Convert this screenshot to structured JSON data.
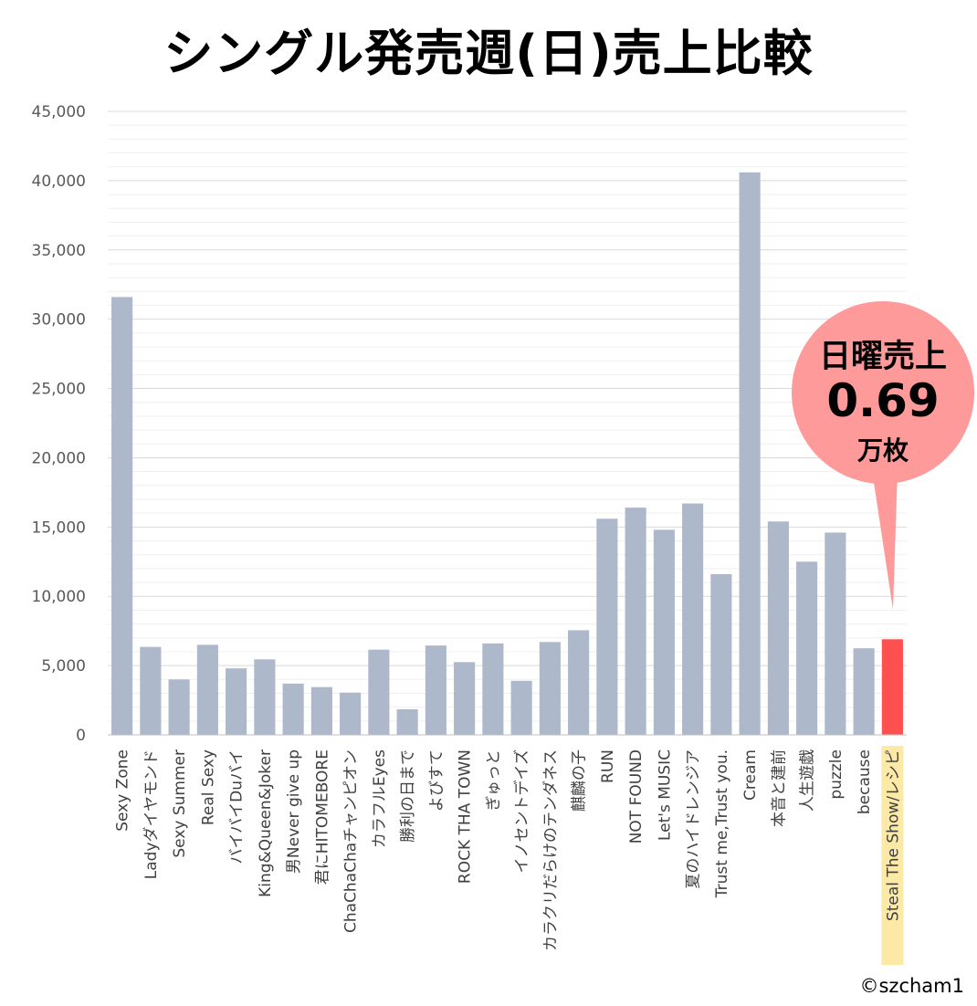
{
  "title": "シングル発売週(日)売上比較",
  "chart_data": {
    "type": "bar",
    "title": "シングル発売週(日)売上比較",
    "xlabel": "",
    "ylabel": "",
    "ylim": [
      0,
      45000
    ],
    "ytick_step": 5000,
    "yticks": [
      "0",
      "5,000",
      "10,000",
      "15,000",
      "20,000",
      "25,000",
      "30,000",
      "35,000",
      "40,000",
      "45,000"
    ],
    "grid": true,
    "categories": [
      "Sexy Zone",
      "Ladyダイヤモンド",
      "Sexy Summer",
      "Real Sexy",
      "バイバイDuバイ",
      "King&Queen&Joker",
      "男Never give up",
      "君にHITOMEBORE",
      "ChaChaChaチャンピオン",
      "カラフルEyes",
      "勝利の日まで",
      "よびすて",
      "ROCK THA TOWN",
      "ぎゅっと",
      "イノセントデイズ",
      "カラクリだらけのテンダネス",
      "麒麟の子",
      "RUN",
      "NOT FOUND",
      "Let's MUSIC",
      "夏のハイドレンジア",
      "Trust me,Trust you.",
      "Cream",
      "本音と建前",
      "人生遊戯",
      "puzzle",
      "because",
      "Steal The Show/レシピ"
    ],
    "values": [
      31600,
      6350,
      4000,
      6500,
      4800,
      5450,
      3700,
      3450,
      3050,
      6150,
      1850,
      6450,
      5250,
      6600,
      3900,
      6700,
      7550,
      15600,
      16400,
      14800,
      16700,
      11600,
      40600,
      15400,
      12500,
      14600,
      6250,
      6900
    ],
    "bar_color": "#adb8cb",
    "highlight_index": 27,
    "highlight_color": "#ff5050",
    "highlight_label_bg": "#fde9a6"
  },
  "callout": {
    "line1": "日曜売上",
    "value": "0.69",
    "unit": "万枚",
    "fill_color": "#ff9a9a"
  },
  "copyright": "©szcham1"
}
